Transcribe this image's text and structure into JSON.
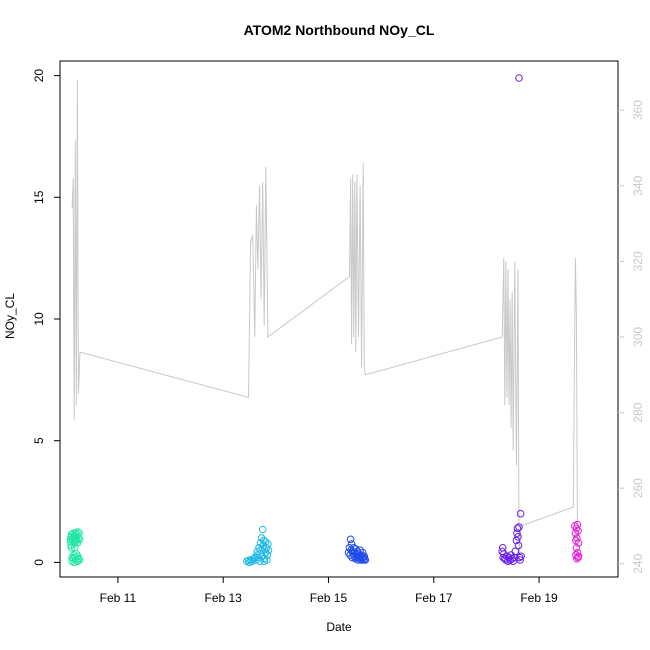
{
  "chart_data": {
    "type": "scatter",
    "title": "ATOM2 Northbound NOy_CL",
    "xlabel": "Date",
    "ylabel": "NOy_CL",
    "xlim": [
      9.9,
      20.5
    ],
    "ylim": [
      -0.6,
      20.6
    ],
    "y2lim": [
      236.5,
      373
    ],
    "x_ticks": [
      {
        "value": 11,
        "label": "Feb 11"
      },
      {
        "value": 13,
        "label": "Feb 13"
      },
      {
        "value": 15,
        "label": "Feb 15"
      },
      {
        "value": 17,
        "label": "Feb 17"
      },
      {
        "value": 19,
        "label": "Feb 19"
      }
    ],
    "y_ticks": [
      0,
      5,
      10,
      15,
      20
    ],
    "y2_ticks": [
      240,
      260,
      280,
      300,
      320,
      340,
      360
    ],
    "grid": false,
    "colors": {
      "secondary_line": "#c8c8c8",
      "right_axis": "#c8c8c8",
      "axis": "#000000"
    },
    "secondary_series": {
      "type": "line",
      "axis": "right",
      "points": [
        [
          10.13,
          334
        ],
        [
          10.15,
          342
        ],
        [
          10.17,
          278
        ],
        [
          10.19,
          352
        ],
        [
          10.21,
          282
        ],
        [
          10.23,
          368
        ],
        [
          10.25,
          285
        ],
        [
          10.28,
          296
        ],
        [
          13.48,
          284
        ],
        [
          13.52,
          325
        ],
        [
          13.56,
          327
        ],
        [
          13.6,
          300
        ],
        [
          13.63,
          335
        ],
        [
          13.66,
          318
        ],
        [
          13.69,
          340
        ],
        [
          13.72,
          310
        ],
        [
          13.75,
          341
        ],
        [
          13.78,
          303
        ],
        [
          13.81,
          345
        ],
        [
          13.85,
          300
        ],
        [
          15.4,
          316
        ],
        [
          15.42,
          342
        ],
        [
          15.44,
          298
        ],
        [
          15.46,
          343
        ],
        [
          15.48,
          300
        ],
        [
          15.5,
          341
        ],
        [
          15.52,
          296
        ],
        [
          15.54,
          343
        ],
        [
          15.57,
          300
        ],
        [
          15.6,
          340
        ],
        [
          15.63,
          292
        ],
        [
          15.66,
          346
        ],
        [
          15.68,
          292
        ],
        [
          15.7,
          290
        ],
        [
          18.3,
          300
        ],
        [
          18.33,
          321
        ],
        [
          18.35,
          282
        ],
        [
          18.37,
          320
        ],
        [
          18.39,
          284
        ],
        [
          18.41,
          318
        ],
        [
          18.43,
          282
        ],
        [
          18.45,
          310
        ],
        [
          18.47,
          276
        ],
        [
          18.49,
          312
        ],
        [
          18.51,
          270
        ],
        [
          18.54,
          320
        ],
        [
          18.57,
          266
        ],
        [
          18.6,
          318
        ],
        [
          18.62,
          240
        ],
        [
          18.65,
          250
        ],
        [
          19.65,
          255
        ],
        [
          19.67,
          290
        ],
        [
          19.69,
          321
        ],
        [
          19.71,
          305
        ],
        [
          19.73,
          246
        ]
      ]
    },
    "series": [
      {
        "color": "#1fe8a4",
        "points": [
          [
            10.1,
            0.85
          ],
          [
            10.1,
            0.95
          ],
          [
            10.11,
            1.05
          ],
          [
            10.11,
            0.7
          ],
          [
            10.12,
            0.6
          ],
          [
            10.12,
            1.15
          ],
          [
            10.13,
            0.2
          ],
          [
            10.13,
            0.05
          ],
          [
            10.14,
            0.9
          ],
          [
            10.14,
            1.0
          ],
          [
            10.15,
            1.2
          ],
          [
            10.15,
            0.15
          ],
          [
            10.16,
            0.3
          ],
          [
            10.16,
            0.8
          ],
          [
            10.17,
            0.0
          ],
          [
            10.17,
            1.1
          ],
          [
            10.18,
            0.95
          ],
          [
            10.18,
            0.6
          ],
          [
            10.19,
            0.2
          ],
          [
            10.19,
            1.2
          ],
          [
            10.2,
            0.85
          ],
          [
            10.2,
            0.1
          ],
          [
            10.21,
            1.05
          ],
          [
            10.21,
            0.35
          ],
          [
            10.22,
            0.9
          ],
          [
            10.22,
            1.15
          ],
          [
            10.23,
            0.05
          ],
          [
            10.23,
            0.8
          ],
          [
            10.24,
            1.25
          ],
          [
            10.24,
            0.25
          ],
          [
            10.25,
            1.0
          ],
          [
            10.25,
            0.15
          ],
          [
            10.26,
            1.2
          ],
          [
            10.27,
            0.95
          ],
          [
            10.27,
            0.1
          ]
        ]
      },
      {
        "color": "#1fb8e8",
        "points": [
          [
            13.45,
            0.05
          ],
          [
            13.48,
            0.08
          ],
          [
            13.5,
            0.0
          ],
          [
            13.52,
            0.1
          ],
          [
            13.55,
            0.05
          ],
          [
            13.58,
            0.15
          ],
          [
            13.6,
            0.2
          ],
          [
            13.62,
            0.1
          ],
          [
            13.64,
            0.3
          ],
          [
            13.65,
            0.45
          ],
          [
            13.67,
            0.2
          ],
          [
            13.68,
            0.6
          ],
          [
            13.7,
            0.35
          ],
          [
            13.71,
            0.8
          ],
          [
            13.72,
            0.5
          ],
          [
            13.73,
            1.0
          ],
          [
            13.74,
            0.25
          ],
          [
            13.75,
            1.35
          ],
          [
            13.76,
            0.7
          ],
          [
            13.77,
            0.9
          ],
          [
            13.78,
            0.15
          ],
          [
            13.79,
            0.55
          ],
          [
            13.8,
            0.85
          ],
          [
            13.81,
            0.4
          ],
          [
            13.82,
            0.6
          ],
          [
            13.83,
            0.1
          ],
          [
            13.84,
            0.3
          ],
          [
            13.85,
            0.75
          ],
          [
            13.86,
            0.5
          ],
          [
            13.7,
            0.05
          ],
          [
            13.78,
            0.05
          ]
        ]
      },
      {
        "color": "#1f4ce8",
        "points": [
          [
            15.38,
            0.4
          ],
          [
            15.4,
            0.6
          ],
          [
            15.41,
            0.3
          ],
          [
            15.42,
            0.95
          ],
          [
            15.43,
            0.5
          ],
          [
            15.44,
            0.75
          ],
          [
            15.45,
            0.2
          ],
          [
            15.46,
            0.45
          ],
          [
            15.47,
            0.35
          ],
          [
            15.48,
            0.6
          ],
          [
            15.49,
            0.25
          ],
          [
            15.5,
            0.4
          ],
          [
            15.51,
            0.15
          ],
          [
            15.52,
            0.55
          ],
          [
            15.53,
            0.3
          ],
          [
            15.54,
            0.2
          ],
          [
            15.55,
            0.45
          ],
          [
            15.56,
            0.1
          ],
          [
            15.57,
            0.35
          ],
          [
            15.58,
            0.25
          ],
          [
            15.59,
            0.15
          ],
          [
            15.6,
            0.5
          ],
          [
            15.61,
            0.2
          ],
          [
            15.62,
            0.1
          ],
          [
            15.63,
            0.3
          ],
          [
            15.64,
            0.15
          ],
          [
            15.65,
            0.4
          ],
          [
            15.66,
            0.2
          ],
          [
            15.67,
            0.1
          ],
          [
            15.68,
            0.25
          ],
          [
            15.69,
            0.15
          ],
          [
            15.7,
            0.1
          ]
        ]
      },
      {
        "color": "#6a1fe8",
        "points": [
          [
            18.3,
            0.45
          ],
          [
            18.31,
            0.6
          ],
          [
            18.32,
            0.2
          ],
          [
            18.33,
            0.35
          ],
          [
            18.35,
            0.15
          ],
          [
            18.37,
            0.1
          ],
          [
            18.39,
            0.25
          ],
          [
            18.41,
            0.05
          ],
          [
            18.43,
            0.2
          ],
          [
            18.45,
            0.1
          ],
          [
            18.47,
            0.3
          ],
          [
            18.49,
            0.15
          ],
          [
            18.51,
            0.05
          ],
          [
            18.53,
            0.2
          ],
          [
            18.55,
            0.45
          ],
          [
            18.57,
            0.9
          ],
          [
            18.58,
            1.2
          ],
          [
            18.59,
            1.4
          ],
          [
            18.6,
            1.05
          ],
          [
            18.61,
            0.7
          ],
          [
            18.62,
            1.45
          ],
          [
            18.63,
            0.2
          ],
          [
            18.64,
            0.1
          ],
          [
            18.65,
            2.0
          ],
          [
            18.66,
            0.25
          ],
          [
            18.62,
            19.9
          ]
        ]
      },
      {
        "color": "#e81fe0",
        "points": [
          [
            19.68,
            1.5
          ],
          [
            19.69,
            1.2
          ],
          [
            19.7,
            0.9
          ],
          [
            19.7,
            0.3
          ],
          [
            19.71,
            1.4
          ],
          [
            19.71,
            0.6
          ],
          [
            19.72,
            1.0
          ],
          [
            19.72,
            0.15
          ],
          [
            19.73,
            1.55
          ],
          [
            19.73,
            0.4
          ],
          [
            19.74,
            0.2
          ],
          [
            19.74,
            1.3
          ],
          [
            19.75,
            0.8
          ],
          [
            19.75,
            0.25
          ]
        ]
      }
    ]
  }
}
